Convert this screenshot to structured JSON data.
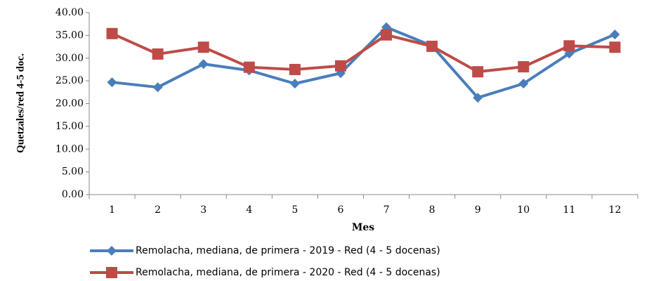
{
  "chart_data": {
    "type": "line",
    "y_label": "Quetzales/red 4-5 doc.",
    "x_label": "Mes",
    "categories": [
      "1",
      "2",
      "3",
      "4",
      "5",
      "6",
      "7",
      "8",
      "9",
      "10",
      "11",
      "12"
    ],
    "series": [
      {
        "name": "Remolacha, mediana, de primera - 2019 - Red (4 - 5 docenas)",
        "color": "#4a7ebb",
        "marker": "diamond",
        "values": [
          24.7,
          23.6,
          28.7,
          27.3,
          24.4,
          26.7,
          36.8,
          32.7,
          21.3,
          24.4,
          31.0,
          35.2
        ]
      },
      {
        "name": "Remolacha, mediana, de primera - 2020 - Red (4 - 5 docenas)",
        "color": "#be4b48",
        "marker": "square",
        "values": [
          35.4,
          30.9,
          32.4,
          28.0,
          27.5,
          28.3,
          35.1,
          32.6,
          27.0,
          28.1,
          32.7,
          32.4
        ]
      }
    ],
    "ylim": [
      0,
      40
    ],
    "yticks": [
      {
        "value": 0,
        "label": "0.00"
      },
      {
        "value": 5,
        "label": "5.00"
      },
      {
        "value": 10,
        "label": "10.00"
      },
      {
        "value": 15,
        "label": "15.00"
      },
      {
        "value": 20,
        "label": "20.00"
      },
      {
        "value": 25,
        "label": "25.00"
      },
      {
        "value": 30,
        "label": "30.00"
      },
      {
        "value": 35,
        "label": "35.00"
      },
      {
        "value": 40,
        "label": "40.00"
      }
    ],
    "grid": false
  }
}
